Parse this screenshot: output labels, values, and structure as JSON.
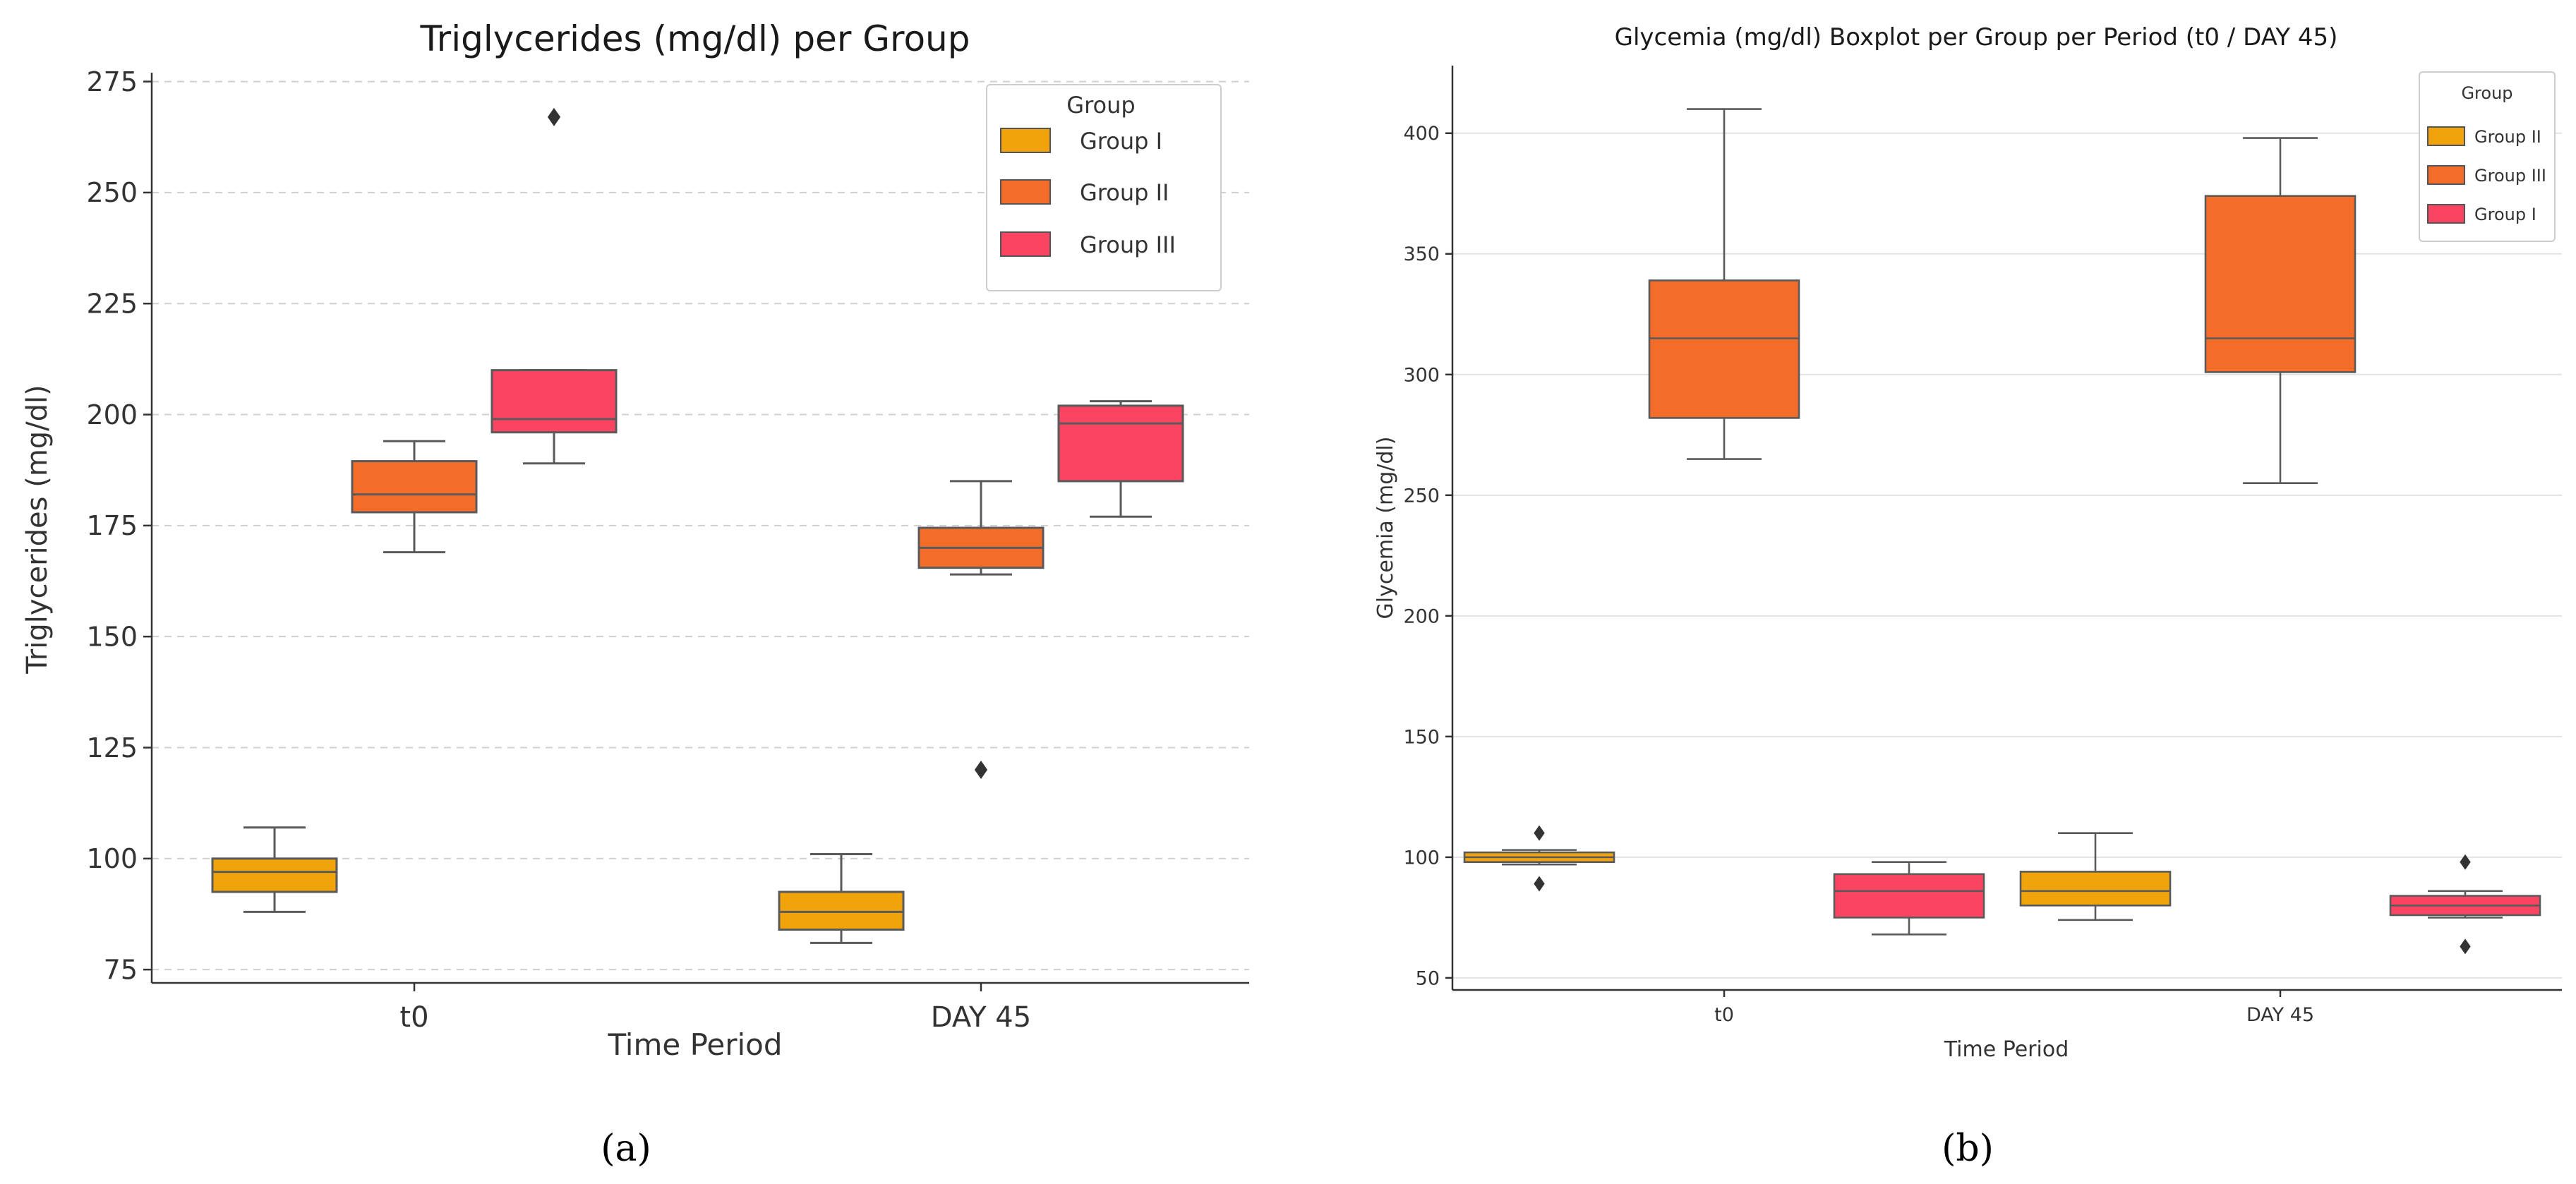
{
  "chart_data": [
    {
      "panel_label": "(a)",
      "type": "boxplot",
      "title": "Triglycerides (mg/dl) per Group",
      "xlabel": "Time Period",
      "ylabel": "Triglycerides (mg/dl)",
      "ylim": [
        72,
        277
      ],
      "yticks": [
        75,
        100,
        125,
        150,
        175,
        200,
        225,
        250,
        275
      ],
      "categories": [
        "t0",
        "DAY 45"
      ],
      "grid": "horizontal-dashed",
      "legend": {
        "title": "Group",
        "position": "top-right",
        "entries": [
          "Group I",
          "Group II",
          "Group III"
        ]
      },
      "series": [
        {
          "name": "Group I",
          "color": "#f0a30a",
          "boxes": [
            {
              "category": "t0",
              "min": 88,
              "q1": 92.5,
              "median": 97,
              "q3": 100,
              "max": 107,
              "outliers": []
            },
            {
              "category": "DAY 45",
              "min": 81,
              "q1": 84,
              "median": 88,
              "q3": 92.5,
              "max": 101,
              "outliers": []
            }
          ]
        },
        {
          "name": "Group II",
          "color": "#f46c2a",
          "boxes": [
            {
              "category": "t0",
              "min": 169,
              "q1": 178,
              "median": 182,
              "q3": 189.5,
              "max": 194,
              "outliers": []
            },
            {
              "category": "DAY 45",
              "min": 164,
              "q1": 165.5,
              "median": 170,
              "q3": 174.5,
              "max": 185,
              "outliers": [
                120
              ]
            }
          ]
        },
        {
          "name": "Group III",
          "color": "#fb4461",
          "boxes": [
            {
              "category": "t0",
              "min": 189,
              "q1": 196,
              "median": 199,
              "q3": 210,
              "max": 210,
              "outliers": [
                267
              ]
            },
            {
              "category": "DAY 45",
              "min": 177,
              "q1": 185,
              "median": 198,
              "q3": 202,
              "max": 203,
              "outliers": []
            }
          ]
        }
      ]
    },
    {
      "panel_label": "(b)",
      "type": "boxplot",
      "title": "Glycemia (mg/dl) Boxplot per Group per Period (t0 / DAY 45)",
      "xlabel": "Time Period",
      "ylabel": "Glycemia (mg/dl)",
      "ylim": [
        45,
        428
      ],
      "yticks": [
        50,
        100,
        150,
        200,
        250,
        300,
        350,
        400
      ],
      "categories": [
        "t0",
        "DAY 45"
      ],
      "grid": "horizontal-solid",
      "legend": {
        "title": "Group",
        "position": "top-right",
        "entries": [
          "Group II",
          "Group III",
          "Group I"
        ]
      },
      "series": [
        {
          "name": "Group II",
          "color": "#f0a30a",
          "boxes": [
            {
              "category": "t0",
              "min": 97,
              "q1": 98,
              "median": 100,
              "q3": 102,
              "max": 103,
              "outliers": [
                110,
                89
              ]
            },
            {
              "category": "DAY 45",
              "min": 74,
              "q1": 80,
              "median": 86,
              "q3": 94,
              "max": 110,
              "outliers": []
            }
          ]
        },
        {
          "name": "Group III",
          "color": "#f46c2a",
          "boxes": [
            {
              "category": "t0",
              "min": 265,
              "q1": 282,
              "median": 315,
              "q3": 339,
              "max": 410,
              "outliers": []
            },
            {
              "category": "DAY 45",
              "min": 255,
              "q1": 301,
              "median": 315,
              "q3": 374,
              "max": 398,
              "outliers": []
            }
          ]
        },
        {
          "name": "Group I",
          "color": "#fb4461",
          "boxes": [
            {
              "category": "t0",
              "min": 68,
              "q1": 75,
              "median": 86,
              "q3": 93,
              "max": 98,
              "outliers": []
            },
            {
              "category": "DAY 45",
              "min": 75,
              "q1": 76,
              "median": 80,
              "q3": 84,
              "max": 86,
              "outliers": [
                98,
                63
              ]
            }
          ]
        }
      ]
    }
  ]
}
